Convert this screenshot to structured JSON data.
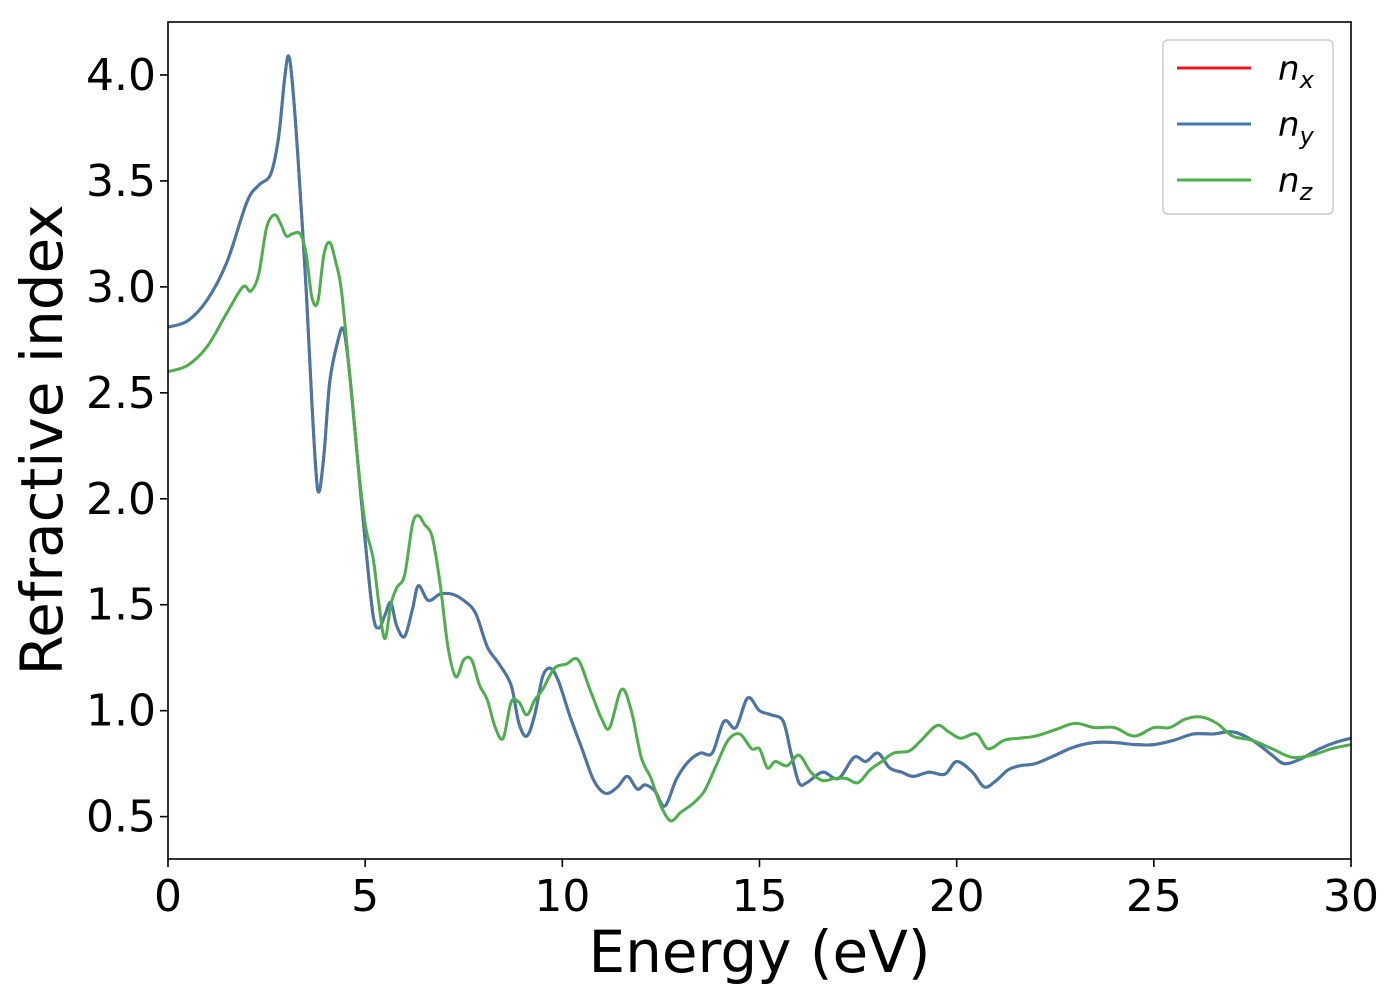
{
  "chart_data": {
    "type": "line",
    "title": "",
    "xlabel": "Energy (eV)",
    "ylabel": "Refractive index",
    "xlim": [
      0,
      30
    ],
    "ylim": [
      0.3,
      4.25
    ],
    "xticks": [
      0,
      5,
      10,
      15,
      20,
      25,
      30
    ],
    "xtick_labels": [
      "0",
      "5",
      "10",
      "15",
      "20",
      "25",
      "30"
    ],
    "yticks": [
      0.5,
      1.0,
      1.5,
      2.0,
      2.5,
      3.0,
      3.5,
      4.0
    ],
    "ytick_labels": [
      "0.5",
      "1.0",
      "1.5",
      "2.0",
      "2.5",
      "3.0",
      "3.5",
      "4.0"
    ],
    "grid": false,
    "legend_position": "top-right",
    "series": [
      {
        "name": "n_x",
        "label_base": "n",
        "label_sub": "x",
        "color": "#e41a1c",
        "x": [
          0,
          0.5,
          1.0,
          1.5,
          2.0,
          2.3,
          2.6,
          2.8,
          2.95,
          3.05,
          3.15,
          3.3,
          3.5,
          3.65,
          3.8,
          3.95,
          4.1,
          4.3,
          4.45,
          4.6,
          4.8,
          5.0,
          5.2,
          5.35,
          5.5,
          5.65,
          5.8,
          6.0,
          6.2,
          6.35,
          6.6,
          6.9,
          7.2,
          7.5,
          7.8,
          8.1,
          8.4,
          8.7,
          8.9,
          9.1,
          9.3,
          9.5,
          9.7,
          9.9,
          10.2,
          10.5,
          10.8,
          11.1,
          11.4,
          11.65,
          11.9,
          12.1,
          12.35,
          12.6,
          12.9,
          13.2,
          13.5,
          13.8,
          14.1,
          14.4,
          14.7,
          15.0,
          15.3,
          15.6,
          15.8,
          16.0,
          16.2,
          16.6,
          17.0,
          17.4,
          17.7,
          18.0,
          18.3,
          18.6,
          18.9,
          19.3,
          19.7,
          20.0,
          20.4,
          20.7,
          21.0,
          21.3,
          21.6,
          22.0,
          22.5,
          23.0,
          23.5,
          24.0,
          24.5,
          25.0,
          25.5,
          26.0,
          26.5,
          27.0,
          27.5,
          28.0,
          28.3,
          28.7,
          29.2,
          29.6,
          30.0
        ],
        "y": [
          2.81,
          2.84,
          2.94,
          3.12,
          3.4,
          3.48,
          3.53,
          3.7,
          3.97,
          4.09,
          3.97,
          3.6,
          3.0,
          2.45,
          2.04,
          2.2,
          2.55,
          2.74,
          2.8,
          2.6,
          2.2,
          1.8,
          1.45,
          1.39,
          1.45,
          1.51,
          1.4,
          1.35,
          1.48,
          1.59,
          1.52,
          1.55,
          1.55,
          1.52,
          1.46,
          1.3,
          1.22,
          1.12,
          0.94,
          0.88,
          0.98,
          1.16,
          1.2,
          1.14,
          0.97,
          0.82,
          0.67,
          0.61,
          0.64,
          0.69,
          0.63,
          0.65,
          0.62,
          0.55,
          0.68,
          0.76,
          0.8,
          0.8,
          0.95,
          0.92,
          1.06,
          1.0,
          0.98,
          0.95,
          0.8,
          0.66,
          0.66,
          0.71,
          0.68,
          0.78,
          0.76,
          0.8,
          0.73,
          0.71,
          0.69,
          0.71,
          0.7,
          0.76,
          0.71,
          0.64,
          0.67,
          0.72,
          0.74,
          0.75,
          0.79,
          0.83,
          0.85,
          0.85,
          0.84,
          0.84,
          0.86,
          0.89,
          0.89,
          0.9,
          0.86,
          0.79,
          0.75,
          0.77,
          0.82,
          0.85,
          0.87
        ]
      },
      {
        "name": "n_y",
        "label_base": "n",
        "label_sub": "y",
        "color": "#4477aa",
        "x": [
          0,
          0.5,
          1.0,
          1.5,
          2.0,
          2.3,
          2.6,
          2.8,
          2.95,
          3.05,
          3.15,
          3.3,
          3.5,
          3.65,
          3.8,
          3.95,
          4.1,
          4.3,
          4.45,
          4.6,
          4.8,
          5.0,
          5.2,
          5.35,
          5.5,
          5.65,
          5.8,
          6.0,
          6.2,
          6.35,
          6.6,
          6.9,
          7.2,
          7.5,
          7.8,
          8.1,
          8.4,
          8.7,
          8.9,
          9.1,
          9.3,
          9.5,
          9.7,
          9.9,
          10.2,
          10.5,
          10.8,
          11.1,
          11.4,
          11.65,
          11.9,
          12.1,
          12.35,
          12.6,
          12.9,
          13.2,
          13.5,
          13.8,
          14.1,
          14.4,
          14.7,
          15.0,
          15.3,
          15.6,
          15.8,
          16.0,
          16.2,
          16.6,
          17.0,
          17.4,
          17.7,
          18.0,
          18.3,
          18.6,
          18.9,
          19.3,
          19.7,
          20.0,
          20.4,
          20.7,
          21.0,
          21.3,
          21.6,
          22.0,
          22.5,
          23.0,
          23.5,
          24.0,
          24.5,
          25.0,
          25.5,
          26.0,
          26.5,
          27.0,
          27.5,
          28.0,
          28.3,
          28.7,
          29.2,
          29.6,
          30.0
        ],
        "y": [
          2.81,
          2.84,
          2.94,
          3.12,
          3.4,
          3.48,
          3.53,
          3.7,
          3.97,
          4.09,
          3.97,
          3.6,
          3.0,
          2.45,
          2.04,
          2.2,
          2.55,
          2.74,
          2.8,
          2.6,
          2.2,
          1.8,
          1.45,
          1.39,
          1.45,
          1.51,
          1.4,
          1.35,
          1.48,
          1.59,
          1.52,
          1.55,
          1.55,
          1.52,
          1.46,
          1.3,
          1.22,
          1.12,
          0.94,
          0.88,
          0.98,
          1.16,
          1.2,
          1.14,
          0.97,
          0.82,
          0.67,
          0.61,
          0.64,
          0.69,
          0.63,
          0.65,
          0.62,
          0.55,
          0.68,
          0.76,
          0.8,
          0.8,
          0.95,
          0.92,
          1.06,
          1.0,
          0.98,
          0.95,
          0.8,
          0.66,
          0.66,
          0.71,
          0.68,
          0.78,
          0.76,
          0.8,
          0.73,
          0.71,
          0.69,
          0.71,
          0.7,
          0.76,
          0.71,
          0.64,
          0.67,
          0.72,
          0.74,
          0.75,
          0.79,
          0.83,
          0.85,
          0.85,
          0.84,
          0.84,
          0.86,
          0.89,
          0.89,
          0.9,
          0.86,
          0.79,
          0.75,
          0.77,
          0.82,
          0.85,
          0.87
        ]
      },
      {
        "name": "n_z",
        "label_base": "n",
        "label_sub": "z",
        "color": "#4daf4a",
        "x": [
          0,
          0.5,
          1.0,
          1.5,
          1.9,
          2.1,
          2.3,
          2.5,
          2.7,
          2.85,
          3.0,
          3.15,
          3.35,
          3.5,
          3.65,
          3.8,
          3.95,
          4.1,
          4.25,
          4.4,
          4.6,
          4.8,
          5.0,
          5.2,
          5.35,
          5.5,
          5.65,
          5.8,
          6.0,
          6.2,
          6.35,
          6.5,
          6.7,
          6.9,
          7.1,
          7.3,
          7.5,
          7.7,
          7.9,
          8.1,
          8.3,
          8.5,
          8.7,
          8.9,
          9.1,
          9.3,
          9.5,
          9.8,
          10.1,
          10.4,
          10.7,
          11.0,
          11.2,
          11.5,
          11.75,
          12.0,
          12.25,
          12.5,
          12.75,
          13.0,
          13.3,
          13.6,
          13.9,
          14.2,
          14.5,
          14.8,
          15.0,
          15.2,
          15.4,
          15.7,
          16.0,
          16.3,
          16.6,
          16.9,
          17.2,
          17.5,
          17.8,
          18.1,
          18.4,
          18.8,
          19.1,
          19.5,
          19.8,
          20.1,
          20.5,
          20.8,
          21.2,
          21.6,
          22.0,
          22.5,
          23.0,
          23.5,
          24.0,
          24.5,
          25.0,
          25.4,
          25.8,
          26.2,
          26.6,
          27.0,
          27.5,
          28.0,
          28.5,
          29.0,
          29.5,
          30.0
        ],
        "y": [
          2.6,
          2.63,
          2.72,
          2.88,
          3.0,
          2.98,
          3.06,
          3.28,
          3.34,
          3.3,
          3.24,
          3.25,
          3.25,
          3.16,
          2.95,
          2.93,
          3.15,
          3.21,
          3.12,
          2.98,
          2.6,
          2.2,
          1.88,
          1.72,
          1.5,
          1.34,
          1.5,
          1.58,
          1.64,
          1.88,
          1.92,
          1.88,
          1.82,
          1.6,
          1.3,
          1.16,
          1.24,
          1.24,
          1.12,
          1.05,
          0.92,
          0.87,
          1.04,
          1.04,
          0.98,
          1.05,
          1.1,
          1.2,
          1.22,
          1.24,
          1.1,
          0.96,
          0.92,
          1.1,
          1.0,
          0.78,
          0.68,
          0.55,
          0.48,
          0.52,
          0.56,
          0.62,
          0.74,
          0.86,
          0.89,
          0.82,
          0.82,
          0.73,
          0.76,
          0.74,
          0.79,
          0.71,
          0.67,
          0.68,
          0.68,
          0.66,
          0.72,
          0.76,
          0.8,
          0.81,
          0.86,
          0.93,
          0.9,
          0.87,
          0.89,
          0.82,
          0.86,
          0.87,
          0.88,
          0.91,
          0.94,
          0.92,
          0.92,
          0.88,
          0.92,
          0.92,
          0.96,
          0.97,
          0.94,
          0.88,
          0.86,
          0.82,
          0.78,
          0.79,
          0.82,
          0.84
        ]
      }
    ]
  }
}
